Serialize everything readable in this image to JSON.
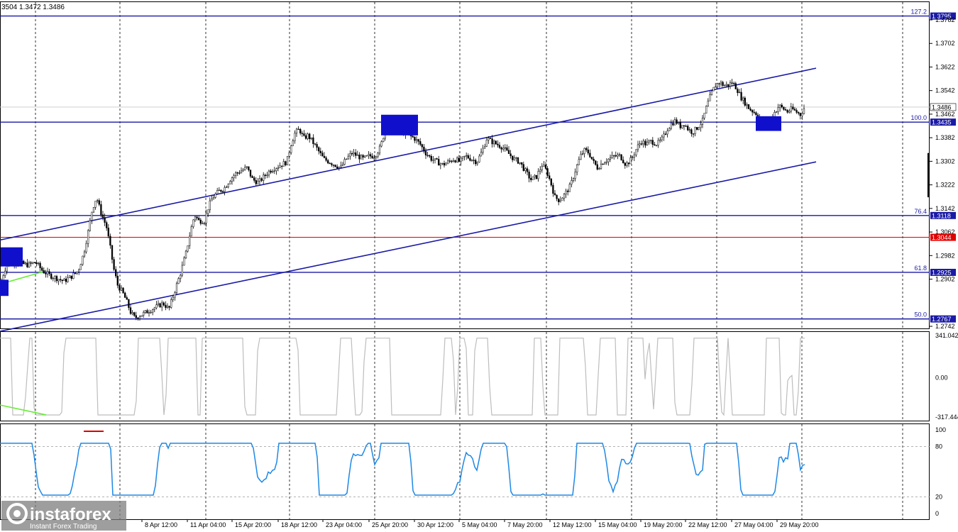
{
  "header": {
    "ohlc_text": "3504 1.3472 1.3486"
  },
  "logo": {
    "brand": "instaforex",
    "tagline": "Instant Forex Trading"
  },
  "colors": {
    "fib_line": "#1a1aa6",
    "red_line": "#e00000",
    "channel": "#1a1aa6",
    "box_fill": "#1010cc",
    "cci_line": "#bdbdbd",
    "rsi_line": "#1e88e5",
    "green_div": "#66ee33"
  },
  "chart_data": [
    {
      "type": "candlestick",
      "title": "",
      "price_axis": {
        "ylim": [
          1.27,
          1.383
        ],
        "ticks": [
          "1.3782",
          "1.3702",
          "1.3622",
          "1.3542",
          "1.3462",
          "1.3382",
          "1.3302",
          "1.3222",
          "1.3142",
          "1.3062",
          "1.2982",
          "1.2902",
          "1.2742"
        ],
        "current_price": "1.3486"
      },
      "fib_levels": [
        {
          "label": "127.2",
          "price": "1.3795"
        },
        {
          "label": "100.0",
          "price": "1.3435"
        },
        {
          "label": "76.4",
          "price": "1.3118"
        },
        {
          "label": "61.8",
          "price": "1.2925"
        },
        {
          "label": "50.0",
          "price": "1.2767"
        }
      ],
      "red_level": {
        "price": "1.3044"
      },
      "time_labels": [
        "8 Apr 12:00",
        "11 Apr 04:00",
        "15 Apr 20:00",
        "18 Apr 12:00",
        "23 Apr 04:00",
        "25 Apr 20:00",
        "30 Apr 12:00",
        "5 May 04:00",
        "7 May 20:00",
        "12 May 12:00",
        "15 May 04:00",
        "19 May 20:00",
        "22 May 12:00",
        "27 May 04:00",
        "29 May 20:00"
      ],
      "close_path": [
        [
          0,
          1.288
        ],
        [
          6,
          1.293
        ],
        [
          12,
          1.2965
        ],
        [
          20,
          1.296
        ],
        [
          30,
          1.2955
        ],
        [
          40,
          1.295
        ],
        [
          50,
          1.296
        ],
        [
          60,
          1.293
        ],
        [
          70,
          1.2915
        ],
        [
          80,
          1.2905
        ],
        [
          90,
          1.2895
        ],
        [
          100,
          1.291
        ],
        [
          110,
          1.293
        ],
        [
          118,
          1.299
        ],
        [
          124,
          1.306
        ],
        [
          130,
          1.314
        ],
        [
          136,
          1.318
        ],
        [
          142,
          1.313
        ],
        [
          150,
          1.308
        ],
        [
          156,
          1.3
        ],
        [
          160,
          1.294
        ],
        [
          166,
          1.288
        ],
        [
          172,
          1.286
        ],
        [
          178,
          1.283
        ],
        [
          184,
          1.279
        ],
        [
          190,
          1.277
        ],
        [
          198,
          1.278
        ],
        [
          206,
          1.279
        ],
        [
          214,
          1.28
        ],
        [
          222,
          1.281
        ],
        [
          230,
          1.282
        ],
        [
          238,
          1.28
        ],
        [
          246,
          1.286
        ],
        [
          254,
          1.292
        ],
        [
          262,
          1.299
        ],
        [
          268,
          1.306
        ],
        [
          274,
          1.312
        ],
        [
          280,
          1.31
        ],
        [
          288,
          1.31
        ],
        [
          294,
          1.315
        ],
        [
          300,
          1.318
        ],
        [
          308,
          1.32
        ],
        [
          316,
          1.321
        ],
        [
          324,
          1.324
        ],
        [
          332,
          1.326
        ],
        [
          340,
          1.327
        ],
        [
          348,
          1.328
        ],
        [
          356,
          1.324
        ],
        [
          364,
          1.323
        ],
        [
          372,
          1.325
        ],
        [
          380,
          1.327
        ],
        [
          388,
          1.328
        ],
        [
          396,
          1.329
        ],
        [
          404,
          1.33
        ],
        [
          410,
          1.336
        ],
        [
          416,
          1.34
        ],
        [
          422,
          1.341
        ],
        [
          428,
          1.338
        ],
        [
          434,
          1.339
        ],
        [
          440,
          1.337
        ],
        [
          448,
          1.334
        ],
        [
          456,
          1.331
        ],
        [
          464,
          1.33
        ],
        [
          472,
          1.329
        ],
        [
          480,
          1.328
        ],
        [
          488,
          1.331
        ],
        [
          496,
          1.333
        ],
        [
          504,
          1.332
        ],
        [
          512,
          1.331
        ],
        [
          520,
          1.332
        ],
        [
          528,
          1.332
        ],
        [
          536,
          1.335
        ],
        [
          544,
          1.342
        ],
        [
          552,
          1.343
        ],
        [
          560,
          1.341
        ],
        [
          568,
          1.34
        ],
        [
          576,
          1.339
        ],
        [
          584,
          1.338
        ],
        [
          592,
          1.336
        ],
        [
          600,
          1.333
        ],
        [
          608,
          1.331
        ],
        [
          616,
          1.33
        ],
        [
          624,
          1.329
        ],
        [
          632,
          1.33
        ],
        [
          640,
          1.331
        ],
        [
          648,
          1.33
        ],
        [
          656,
          1.332
        ],
        [
          664,
          1.331
        ],
        [
          672,
          1.33
        ],
        [
          680,
          1.334
        ],
        [
          686,
          1.338
        ],
        [
          692,
          1.337
        ],
        [
          700,
          1.336
        ],
        [
          708,
          1.335
        ],
        [
          716,
          1.333
        ],
        [
          724,
          1.331
        ],
        [
          732,
          1.33
        ],
        [
          740,
          1.327
        ],
        [
          748,
          1.324
        ],
        [
          756,
          1.325
        ],
        [
          764,
          1.329
        ],
        [
          770,
          1.327
        ],
        [
          776,
          1.323
        ],
        [
          782,
          1.318
        ],
        [
          788,
          1.317
        ],
        [
          796,
          1.319
        ],
        [
          804,
          1.322
        ],
        [
          812,
          1.328
        ],
        [
          818,
          1.332
        ],
        [
          824,
          1.334
        ],
        [
          830,
          1.333
        ],
        [
          836,
          1.33
        ],
        [
          842,
          1.328
        ],
        [
          850,
          1.33
        ],
        [
          858,
          1.331
        ],
        [
          866,
          1.332
        ],
        [
          874,
          1.332
        ],
        [
          882,
          1.329
        ],
        [
          890,
          1.331
        ],
        [
          898,
          1.335
        ],
        [
          904,
          1.337
        ],
        [
          910,
          1.336
        ],
        [
          918,
          1.337
        ],
        [
          926,
          1.336
        ],
        [
          934,
          1.338
        ],
        [
          940,
          1.341
        ],
        [
          946,
          1.343
        ],
        [
          952,
          1.344
        ],
        [
          958,
          1.342
        ],
        [
          964,
          1.343
        ],
        [
          970,
          1.341
        ],
        [
          976,
          1.34
        ],
        [
          984,
          1.342
        ],
        [
          990,
          1.344
        ],
        [
          996,
          1.349
        ],
        [
          1002,
          1.353
        ],
        [
          1008,
          1.356
        ],
        [
          1014,
          1.357
        ],
        [
          1020,
          1.356
        ],
        [
          1026,
          1.356
        ],
        [
          1032,
          1.357
        ],
        [
          1038,
          1.355
        ],
        [
          1044,
          1.352
        ],
        [
          1050,
          1.35
        ],
        [
          1056,
          1.348
        ],
        [
          1062,
          1.347
        ],
        [
          1068,
          1.346
        ],
        [
          1074,
          1.344
        ],
        [
          1080,
          1.343
        ],
        [
          1086,
          1.345
        ],
        [
          1092,
          1.347
        ],
        [
          1098,
          1.349
        ],
        [
          1104,
          1.348
        ],
        [
          1110,
          1.347
        ],
        [
          1116,
          1.348
        ],
        [
          1122,
          1.347
        ],
        [
          1128,
          1.346
        ],
        [
          1134,
          1.3486
        ]
      ]
    },
    {
      "type": "line",
      "title": "",
      "series": [
        {
          "values_path": "cci"
        }
      ],
      "ticks": [
        "341.0423",
        "0.00",
        "-317.444"
      ],
      "ylim": [
        -317.444,
        341.0423
      ]
    },
    {
      "type": "line",
      "title": "",
      "series": [
        {
          "values_path": "rsi"
        }
      ],
      "ticks": [
        "100",
        "80",
        "20",
        "0"
      ],
      "ylim": [
        0,
        100
      ]
    }
  ]
}
